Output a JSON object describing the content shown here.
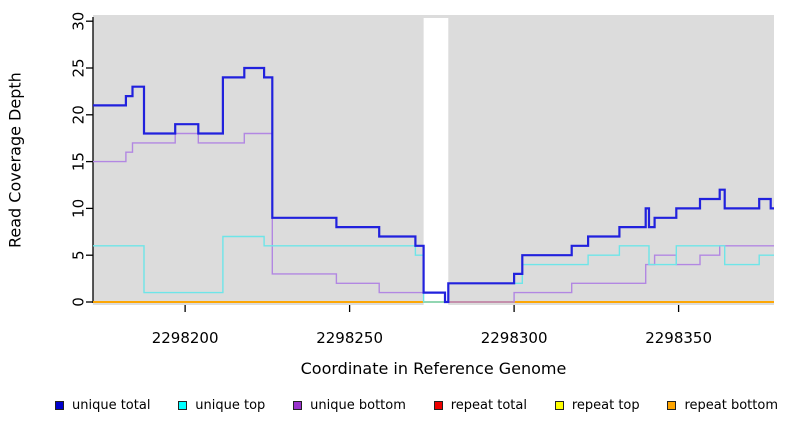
{
  "chart_data": {
    "type": "line",
    "subtype": "step-coverage",
    "title": "",
    "xlabel": "Coordinate in Reference Genome",
    "ylabel": "Read Coverage Depth",
    "xlim": [
      2298172,
      2298379
    ],
    "ylim": [
      0,
      30
    ],
    "grid": false,
    "legend_position": "bottom",
    "panel_background": "#dcdcdc",
    "axis_color": "#000000",
    "x_ticks": [
      2298200,
      2298250,
      2298300,
      2298350
    ],
    "x_tick_labels": [
      "2298200",
      "2298250",
      "2298300",
      "2298350"
    ],
    "y_ticks": [
      0,
      5,
      10,
      15,
      20,
      25,
      30
    ],
    "y_tick_labels": [
      "0",
      "5",
      "10",
      "15",
      "20",
      "25",
      "30"
    ],
    "gap_region": {
      "x_start": 2298272.5,
      "x_end": 2298280,
      "color": "#ffffff"
    },
    "series": [
      {
        "name": "unique total",
        "swatch_color": "#0000cd",
        "line_color": "#2121dd",
        "line_width": 2.2,
        "z": 5,
        "steps": [
          [
            2298172,
            21
          ],
          [
            2298182,
            22
          ],
          [
            2298184,
            23
          ],
          [
            2298187.5,
            18
          ],
          [
            2298197,
            19
          ],
          [
            2298204,
            18
          ],
          [
            2298211.5,
            24
          ],
          [
            2298218,
            25
          ],
          [
            2298224,
            24
          ],
          [
            2298226.5,
            9
          ],
          [
            2298246,
            8
          ],
          [
            2298259,
            7
          ],
          [
            2298270,
            6
          ],
          [
            2298272.5,
            1
          ],
          [
            2298279,
            0
          ],
          [
            2298280,
            2
          ],
          [
            2298300,
            3
          ],
          [
            2298302.5,
            5
          ],
          [
            2298317.5,
            6
          ],
          [
            2298322.5,
            7
          ],
          [
            2298332,
            8
          ],
          [
            2298340,
            10
          ],
          [
            2298341,
            8
          ],
          [
            2298342.7,
            9
          ],
          [
            2298349.3,
            10
          ],
          [
            2298356.5,
            11
          ],
          [
            2298362.5,
            12
          ],
          [
            2298364,
            10
          ],
          [
            2298374.5,
            11
          ],
          [
            2298378,
            10
          ]
        ]
      },
      {
        "name": "unique top",
        "swatch_color": "#00ffff",
        "line_color": "#6ee5e8",
        "line_width": 1.4,
        "z": 4,
        "steps": [
          [
            2298172,
            6
          ],
          [
            2298187.5,
            1
          ],
          [
            2298211.5,
            7
          ],
          [
            2298224,
            6
          ],
          [
            2298270,
            5
          ],
          [
            2298272.5,
            0
          ],
          [
            2298280,
            2
          ],
          [
            2298302.5,
            4
          ],
          [
            2298322.5,
            5
          ],
          [
            2298332,
            6
          ],
          [
            2298341,
            4
          ],
          [
            2298349.3,
            6
          ],
          [
            2298364,
            4
          ],
          [
            2298374.5,
            5
          ]
        ]
      },
      {
        "name": "unique bottom",
        "swatch_color": "#9932cc",
        "line_color": "#b287e2",
        "line_width": 1.4,
        "z": 3,
        "steps": [
          [
            2298172,
            15
          ],
          [
            2298182,
            16
          ],
          [
            2298184,
            17
          ],
          [
            2298197,
            18
          ],
          [
            2298204,
            17
          ],
          [
            2298218,
            18
          ],
          [
            2298226.5,
            3
          ],
          [
            2298246,
            2
          ],
          [
            2298259,
            1
          ],
          [
            2298279,
            0
          ],
          [
            2298300,
            1
          ],
          [
            2298317.5,
            2
          ],
          [
            2298340,
            4
          ],
          [
            2298342.7,
            5
          ],
          [
            2298349.3,
            4
          ],
          [
            2298356.5,
            5
          ],
          [
            2298362.5,
            6
          ]
        ]
      },
      {
        "name": "repeat total",
        "swatch_color": "#ee0000",
        "line_color": "#e60000",
        "line_width": 1.4,
        "z": 0,
        "steps": [
          [
            2298172,
            0
          ]
        ]
      },
      {
        "name": "repeat top",
        "swatch_color": "#ffff00",
        "line_color": "#ffff00",
        "line_width": 1.4,
        "z": 1,
        "steps": [
          [
            2298172,
            0
          ]
        ]
      },
      {
        "name": "repeat bottom",
        "swatch_color": "#ffa500",
        "line_color": "#ffa500",
        "line_width": 1.8,
        "z": 2,
        "steps": [
          [
            2298172,
            0
          ]
        ]
      }
    ]
  }
}
